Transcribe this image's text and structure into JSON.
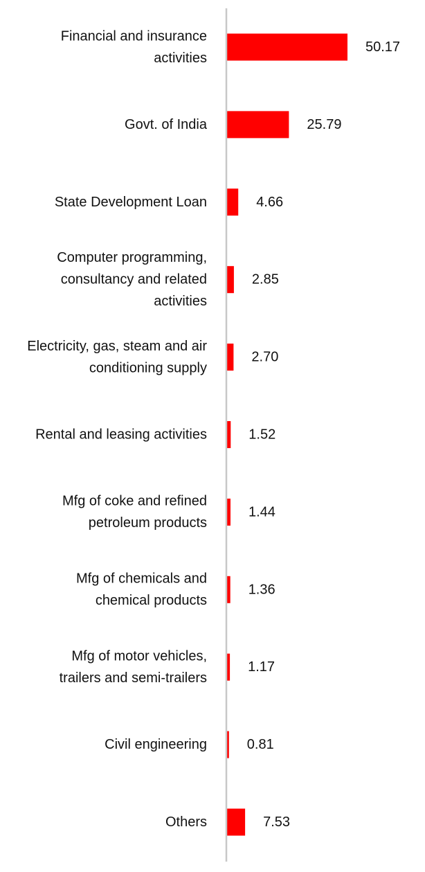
{
  "chart_data": {
    "type": "bar",
    "orientation": "horizontal",
    "title": "",
    "xlabel": "",
    "ylabel": "",
    "xlim": [
      0,
      50.17
    ],
    "grid": false,
    "legend": "none",
    "bar_color": "#ff0000",
    "axis_color": "#c8c8c8",
    "categories": [
      [
        "Financial and insurance",
        "activities"
      ],
      [
        "Govt. of India"
      ],
      [
        "State Development Loan"
      ],
      [
        "Computer programming,",
        "consultancy and related",
        "activities"
      ],
      [
        "Electricity, gas, steam and air",
        "conditioning supply"
      ],
      [
        "Rental and leasing activities"
      ],
      [
        "Mfg of coke and refined",
        "petroleum products"
      ],
      [
        "Mfg of chemicals and",
        "chemical products"
      ],
      [
        "Mfg of motor vehicles,",
        "trailers and semi-trailers"
      ],
      [
        "Civil engineering"
      ],
      [
        "Others"
      ]
    ],
    "values": [
      50.17,
      25.79,
      4.66,
      2.85,
      2.7,
      1.52,
      1.44,
      1.36,
      1.17,
      0.81,
      7.53
    ],
    "value_labels": [
      "50.17",
      "25.79",
      "4.66",
      "2.85",
      "2.70",
      "1.52",
      "1.44",
      "1.36",
      "1.17",
      "0.81",
      "7.53"
    ]
  }
}
